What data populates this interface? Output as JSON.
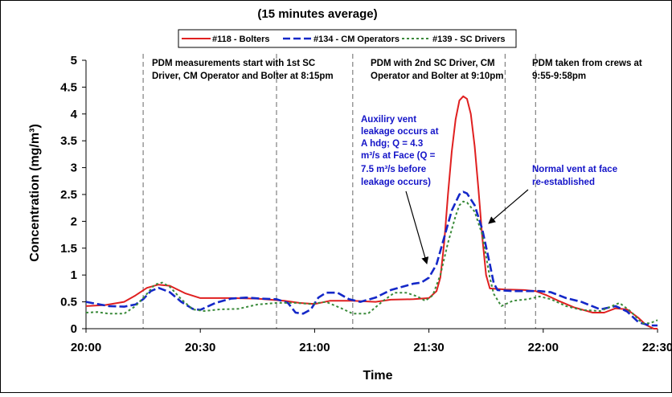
{
  "chart_data": {
    "type": "line",
    "title": "(15 minutes average)",
    "xlabel": "Time",
    "ylabel": "Concentration (mg/m³)",
    "ylim": [
      0,
      5
    ],
    "yticks": [
      0,
      0.5,
      1,
      1.5,
      2,
      2.5,
      3,
      3.5,
      4,
      4.5,
      5
    ],
    "ytick_labels": [
      "0",
      "0.5",
      "1",
      "1.5",
      "2",
      "2.5",
      "3",
      "3.5",
      "4",
      "4.5",
      "5"
    ],
    "x_unit": "minutes",
    "xlim": [
      0,
      150
    ],
    "xticks": [
      0,
      30,
      60,
      90,
      120,
      150
    ],
    "xtick_labels": [
      "20:00",
      "20:30",
      "21:00",
      "21:30",
      "22:00",
      "22:30"
    ],
    "grid": false,
    "legend_position": "top",
    "series": [
      {
        "name": "#118 - Bolters",
        "color": "#e02020",
        "dash": "solid",
        "points": [
          [
            0,
            0.42
          ],
          [
            5,
            0.44
          ],
          [
            10,
            0.5
          ],
          [
            13,
            0.62
          ],
          [
            16,
            0.76
          ],
          [
            19,
            0.82
          ],
          [
            22,
            0.8
          ],
          [
            26,
            0.66
          ],
          [
            30,
            0.57
          ],
          [
            38,
            0.57
          ],
          [
            45,
            0.56
          ],
          [
            52,
            0.52
          ],
          [
            56,
            0.48
          ],
          [
            60,
            0.46
          ],
          [
            64,
            0.52
          ],
          [
            70,
            0.52
          ],
          [
            76,
            0.5
          ],
          [
            80,
            0.54
          ],
          [
            86,
            0.55
          ],
          [
            90,
            0.57
          ],
          [
            92,
            0.7
          ],
          [
            93,
            0.95
          ],
          [
            94,
            1.6
          ],
          [
            95,
            2.5
          ],
          [
            96,
            3.3
          ],
          [
            97,
            3.9
          ],
          [
            98,
            4.25
          ],
          [
            99,
            4.33
          ],
          [
            100,
            4.28
          ],
          [
            101,
            4.0
          ],
          [
            102,
            3.4
          ],
          [
            103,
            2.6
          ],
          [
            104,
            1.7
          ],
          [
            105,
            1.0
          ],
          [
            106,
            0.75
          ],
          [
            110,
            0.73
          ],
          [
            115,
            0.72
          ],
          [
            118,
            0.7
          ],
          [
            121,
            0.62
          ],
          [
            124,
            0.52
          ],
          [
            128,
            0.4
          ],
          [
            133,
            0.3
          ],
          [
            136,
            0.3
          ],
          [
            139,
            0.38
          ],
          [
            142,
            0.36
          ],
          [
            145,
            0.2
          ],
          [
            147,
            0.07
          ],
          [
            149,
            0.0
          ],
          [
            150,
            0.0
          ]
        ]
      },
      {
        "name": "#134 - CM Operators",
        "color": "#1428c8",
        "dash": "long",
        "points": [
          [
            0,
            0.5
          ],
          [
            3,
            0.46
          ],
          [
            6,
            0.42
          ],
          [
            10,
            0.41
          ],
          [
            13,
            0.45
          ],
          [
            15,
            0.55
          ],
          [
            17,
            0.7
          ],
          [
            19,
            0.76
          ],
          [
            22,
            0.68
          ],
          [
            25,
            0.5
          ],
          [
            28,
            0.37
          ],
          [
            30,
            0.35
          ],
          [
            34,
            0.48
          ],
          [
            38,
            0.56
          ],
          [
            42,
            0.58
          ],
          [
            46,
            0.56
          ],
          [
            50,
            0.55
          ],
          [
            53,
            0.48
          ],
          [
            55,
            0.3
          ],
          [
            57,
            0.28
          ],
          [
            59,
            0.36
          ],
          [
            61,
            0.58
          ],
          [
            63,
            0.67
          ],
          [
            66,
            0.67
          ],
          [
            69,
            0.55
          ],
          [
            72,
            0.5
          ],
          [
            76,
            0.58
          ],
          [
            80,
            0.72
          ],
          [
            83,
            0.78
          ],
          [
            86,
            0.84
          ],
          [
            88,
            0.86
          ],
          [
            90,
            0.95
          ],
          [
            92,
            1.2
          ],
          [
            94,
            1.7
          ],
          [
            96,
            2.2
          ],
          [
            98,
            2.5
          ],
          [
            99,
            2.55
          ],
          [
            100,
            2.52
          ],
          [
            102,
            2.3
          ],
          [
            104,
            1.85
          ],
          [
            106,
            1.2
          ],
          [
            107,
            0.85
          ],
          [
            108,
            0.72
          ],
          [
            112,
            0.7
          ],
          [
            116,
            0.7
          ],
          [
            119,
            0.7
          ],
          [
            122,
            0.68
          ],
          [
            126,
            0.57
          ],
          [
            130,
            0.5
          ],
          [
            135,
            0.36
          ],
          [
            139,
            0.42
          ],
          [
            142,
            0.32
          ],
          [
            145,
            0.12
          ],
          [
            148,
            0.06
          ],
          [
            150,
            0.06
          ]
        ]
      },
      {
        "name": "#139 - SC Drivers",
        "color": "#3a8a3a",
        "dash": "short",
        "points": [
          [
            0,
            0.3
          ],
          [
            3,
            0.31
          ],
          [
            6,
            0.28
          ],
          [
            10,
            0.28
          ],
          [
            13,
            0.42
          ],
          [
            16,
            0.65
          ],
          [
            18,
            0.82
          ],
          [
            20,
            0.86
          ],
          [
            22,
            0.78
          ],
          [
            25,
            0.55
          ],
          [
            28,
            0.36
          ],
          [
            31,
            0.33
          ],
          [
            35,
            0.36
          ],
          [
            40,
            0.37
          ],
          [
            45,
            0.45
          ],
          [
            50,
            0.48
          ],
          [
            55,
            0.48
          ],
          [
            59,
            0.46
          ],
          [
            63,
            0.5
          ],
          [
            67,
            0.38
          ],
          [
            70,
            0.28
          ],
          [
            74,
            0.28
          ],
          [
            78,
            0.52
          ],
          [
            81,
            0.67
          ],
          [
            84,
            0.67
          ],
          [
            87,
            0.6
          ],
          [
            89,
            0.52
          ],
          [
            91,
            0.62
          ],
          [
            93,
            1.0
          ],
          [
            95,
            1.6
          ],
          [
            97,
            2.1
          ],
          [
            98,
            2.3
          ],
          [
            99,
            2.37
          ],
          [
            100,
            2.35
          ],
          [
            102,
            2.18
          ],
          [
            104,
            1.75
          ],
          [
            106,
            0.95
          ],
          [
            107,
            0.65
          ],
          [
            109,
            0.42
          ],
          [
            112,
            0.52
          ],
          [
            116,
            0.55
          ],
          [
            119,
            0.6
          ],
          [
            122,
            0.55
          ],
          [
            126,
            0.42
          ],
          [
            130,
            0.35
          ],
          [
            135,
            0.33
          ],
          [
            140,
            0.48
          ],
          [
            143,
            0.32
          ],
          [
            146,
            0.1
          ],
          [
            148,
            0.1
          ],
          [
            150,
            0.16
          ]
        ]
      }
    ],
    "vlines": [
      15,
      50,
      70,
      110,
      118
    ],
    "annotations": [
      {
        "lines": [
          "PDM measurements start with 1st SC",
          "Driver, CM Operator and Bolter at 8:15pm"
        ],
        "color": "black"
      },
      {
        "lines": [
          "PDM with 2nd SC Driver, CM",
          "Operator and Bolter at 9:10pm"
        ],
        "color": "black"
      },
      {
        "lines": [
          "PDM taken from crews at",
          "9:55-9:58pm"
        ],
        "color": "black"
      },
      {
        "lines": [
          "Auxiliry vent",
          "leakage occurs at",
          "A hdg; Q = 4.3",
          "m³/s at Face (Q =",
          "7.5 m³/s before",
          "leakage occurs)"
        ],
        "color": "blue"
      },
      {
        "lines": [
          "Normal vent at face",
          "re-established"
        ],
        "color": "blue"
      }
    ]
  }
}
